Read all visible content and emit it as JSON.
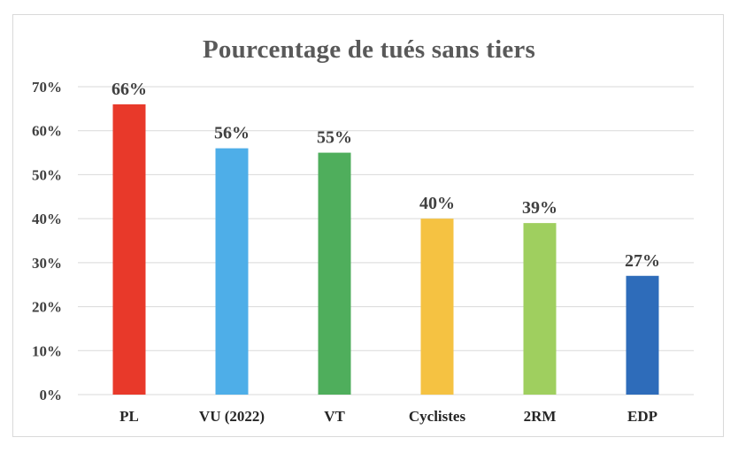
{
  "chart_data": {
    "type": "bar",
    "title": "Pourcentage de tués sans tiers",
    "xlabel": "",
    "ylabel": "",
    "categories": [
      "PL",
      "VU (2022)",
      "VT",
      "Cyclistes",
      "2RM",
      "EDP"
    ],
    "values": [
      66,
      56,
      55,
      40,
      39,
      27
    ],
    "value_labels": [
      "66%",
      "56%",
      "55%",
      "40%",
      "39%",
      "27%"
    ],
    "colors": [
      "#e8392a",
      "#4eaee8",
      "#4fae5c",
      "#f5c242",
      "#9fcf5f",
      "#2e6cba"
    ],
    "ylim": [
      0,
      70
    ],
    "yticks": [
      0,
      10,
      20,
      30,
      40,
      50,
      60,
      70
    ],
    "ytick_labels": [
      "0%",
      "10%",
      "20%",
      "30%",
      "40%",
      "50%",
      "60%",
      "70%"
    ],
    "grid": true,
    "legend": "none"
  }
}
